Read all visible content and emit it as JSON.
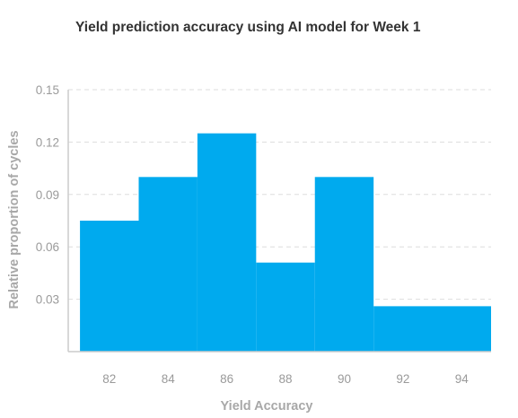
{
  "chart_data": {
    "type": "bar",
    "title": "Yield prediction accuracy using AI model for Week 1",
    "xlabel": "Yield Accuracy",
    "ylabel": "Relative proportion of cycles",
    "bins": [
      {
        "x0": 81,
        "x1": 83,
        "value": 0.075
      },
      {
        "x0": 83,
        "x1": 85,
        "value": 0.1
      },
      {
        "x0": 85,
        "x1": 87,
        "value": 0.125
      },
      {
        "x0": 87,
        "x1": 89,
        "value": 0.051
      },
      {
        "x0": 89,
        "x1": 91,
        "value": 0.1
      },
      {
        "x0": 91,
        "x1": 95,
        "value": 0.026
      }
    ],
    "xlim": [
      80.6,
      95
    ],
    "ylim": [
      0,
      0.15
    ],
    "xticks": [
      "82",
      "84",
      "86",
      "88",
      "90",
      "92",
      "94"
    ],
    "yticks": [
      "0.03",
      "0.06",
      "0.09",
      "0.12",
      "0.15"
    ],
    "grid": true,
    "bar_color": "#00aaee",
    "grid_color": "#dddddd",
    "axis_color": "#cccccc"
  }
}
